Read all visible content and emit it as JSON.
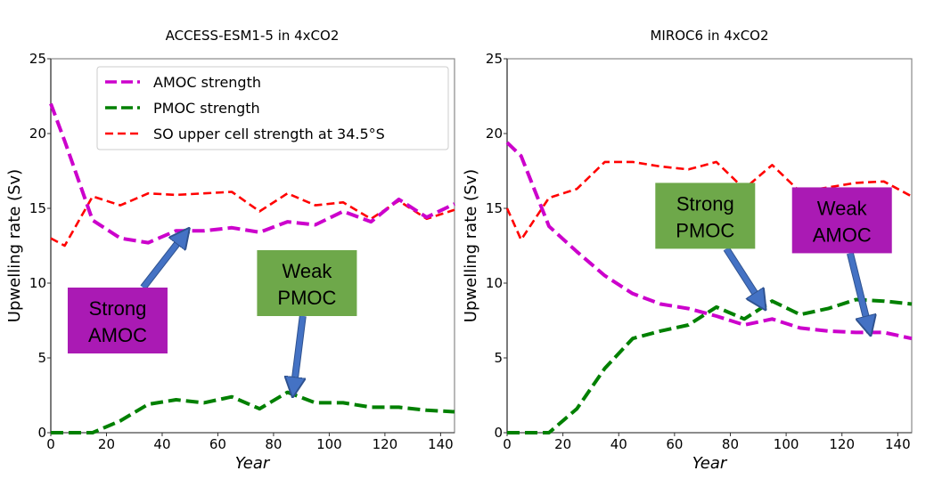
{
  "chart_data": [
    {
      "type": "line",
      "title": "ACCESS-ESM1-5 in 4xCO2",
      "xlabel": "Year",
      "ylabel": "Upwelling rate (Sv)",
      "xlim": [
        0,
        145
      ],
      "ylim": [
        0,
        25
      ],
      "xticks": [
        "0",
        "20",
        "40",
        "60",
        "80",
        "100",
        "120",
        "140"
      ],
      "yticks": [
        "0",
        "5",
        "10",
        "15",
        "20",
        "25"
      ],
      "grid": false,
      "legend": {
        "placement": "top-right",
        "entries": [
          "AMOC strength",
          "PMOC strength",
          "SO upper cell strength at 34.5°S"
        ]
      },
      "x": [
        0,
        5,
        15,
        25,
        35,
        45,
        55,
        65,
        75,
        85,
        95,
        105,
        115,
        125,
        135,
        145
      ],
      "series": [
        {
          "name": "AMOC strength",
          "color": "#cc00cc",
          "style": "dashed-thick",
          "values": [
            22.0,
            19.5,
            14.2,
            13.0,
            12.7,
            13.5,
            13.5,
            13.7,
            13.4,
            14.1,
            13.9,
            14.8,
            14.1,
            15.6,
            14.4,
            15.3
          ]
        },
        {
          "name": "PMOC strength",
          "color": "#008000",
          "style": "dashed-thick",
          "values": [
            0.0,
            0.0,
            0.0,
            0.8,
            1.9,
            2.2,
            2.0,
            2.4,
            1.6,
            2.7,
            2.0,
            2.0,
            1.7,
            1.7,
            1.5,
            1.4
          ]
        },
        {
          "name": "SO upper cell strength at 34.5°S",
          "color": "#ff0000",
          "style": "dashed",
          "values": [
            13.0,
            12.5,
            15.8,
            15.2,
            16.0,
            15.9,
            16.0,
            16.1,
            14.8,
            16.0,
            15.2,
            15.4,
            14.3,
            15.5,
            14.3,
            14.9
          ]
        }
      ],
      "annotations": [
        {
          "text_lines": [
            "Strong",
            "AMOC"
          ],
          "bg": "#aa1ab4",
          "box_center": [
            24,
            7.5
          ],
          "arrow_to": [
            49,
            13.5
          ]
        },
        {
          "text_lines": [
            "Weak",
            "PMOC"
          ],
          "bg": "#6ea84a",
          "box_center": [
            92,
            10.0
          ],
          "arrow_to": [
            87,
            2.6
          ]
        }
      ]
    },
    {
      "type": "line",
      "title": "MIROC6 in 4xCO2",
      "xlabel": "Year",
      "ylabel": "Upwelling rate (Sv)",
      "xlim": [
        0,
        145
      ],
      "ylim": [
        0,
        25
      ],
      "xticks": [
        "0",
        "20",
        "40",
        "60",
        "80",
        "100",
        "120",
        "140"
      ],
      "yticks": [
        "0",
        "5",
        "10",
        "15",
        "20",
        "25"
      ],
      "grid": false,
      "x": [
        0,
        5,
        15,
        25,
        35,
        45,
        55,
        65,
        75,
        85,
        95,
        105,
        115,
        125,
        135,
        145
      ],
      "series": [
        {
          "name": "AMOC strength",
          "color": "#cc00cc",
          "style": "dashed-thick",
          "values": [
            19.4,
            18.5,
            13.8,
            12.1,
            10.5,
            9.3,
            8.6,
            8.3,
            7.8,
            7.2,
            7.6,
            7.0,
            6.8,
            6.7,
            6.7,
            6.3
          ]
        },
        {
          "name": "PMOC strength",
          "color": "#008000",
          "style": "dashed-thick",
          "values": [
            0.0,
            0.0,
            0.0,
            1.6,
            4.3,
            6.3,
            6.8,
            7.2,
            8.4,
            7.6,
            8.8,
            7.9,
            8.3,
            8.9,
            8.8,
            8.6
          ]
        },
        {
          "name": "SO upper cell strength at 34.5°S",
          "color": "#ff0000",
          "style": "dashed",
          "values": [
            15.0,
            12.9,
            15.7,
            16.3,
            18.1,
            18.1,
            17.8,
            17.6,
            18.1,
            16.3,
            17.9,
            16.1,
            16.4,
            16.7,
            16.8,
            15.8
          ]
        }
      ],
      "annotations": [
        {
          "text_lines": [
            "Strong",
            "PMOC"
          ],
          "bg": "#6ea84a",
          "box_center": [
            71,
            14.5
          ],
          "arrow_to": [
            92,
            8.4
          ]
        },
        {
          "text_lines": [
            "Weak",
            "AMOC"
          ],
          "bg": "#aa1ab4",
          "box_center": [
            120,
            14.2
          ],
          "arrow_to": [
            130,
            6.7
          ]
        }
      ]
    }
  ]
}
